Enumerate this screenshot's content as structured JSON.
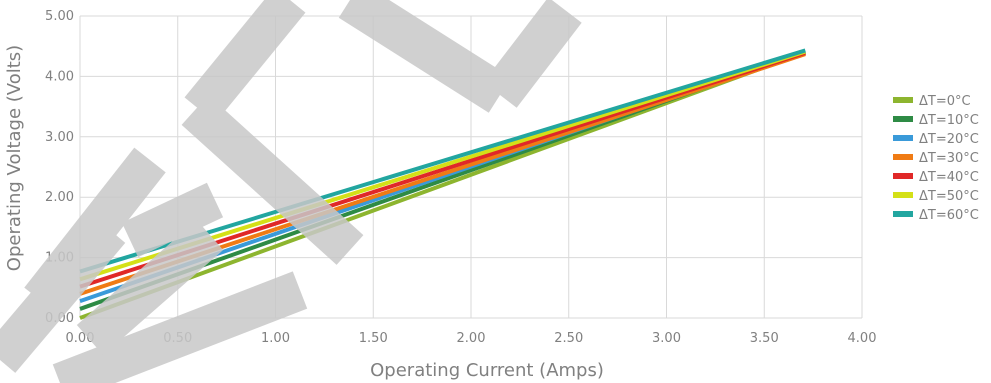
{
  "chart_data": {
    "type": "line",
    "xlabel": "Operating Current (Amps)",
    "ylabel": "Operating Voltage (Volts)",
    "xlim": [
      0,
      4
    ],
    "ylim": [
      0,
      5
    ],
    "x_ticks": [
      "0.00",
      "0.50",
      "1.00",
      "1.50",
      "2.00",
      "2.50",
      "3.00",
      "3.50",
      "4.00"
    ],
    "y_ticks": [
      "0.00",
      "1.00",
      "2.00",
      "3.00",
      "4.00",
      "5.00"
    ],
    "grid": true,
    "legend_position": "right",
    "series": [
      {
        "name": "ΔT=0°C",
        "color": "#8db52f",
        "x": [
          0,
          3.71
        ],
        "y": [
          0.0,
          4.4
        ]
      },
      {
        "name": "ΔT=10°C",
        "color": "#2e8b45",
        "x": [
          0,
          3.71
        ],
        "y": [
          0.15,
          4.41
        ]
      },
      {
        "name": "ΔT=20°C",
        "color": "#3a9ad9",
        "x": [
          0,
          3.71
        ],
        "y": [
          0.28,
          4.41
        ]
      },
      {
        "name": "ΔT=30°C",
        "color": "#f07b14",
        "x": [
          0,
          3.71
        ],
        "y": [
          0.4,
          4.37
        ]
      },
      {
        "name": "ΔT=40°C",
        "color": "#e02828",
        "x": [
          0,
          3.71
        ],
        "y": [
          0.52,
          4.39
        ]
      },
      {
        "name": "ΔT=50°C",
        "color": "#d4e017",
        "x": [
          0,
          3.71
        ],
        "y": [
          0.64,
          4.41
        ]
      },
      {
        "name": "ΔT=60°C",
        "color": "#22a6a0",
        "x": [
          0,
          3.71
        ],
        "y": [
          0.77,
          4.43
        ]
      }
    ]
  },
  "watermark": {
    "text": "END"
  }
}
